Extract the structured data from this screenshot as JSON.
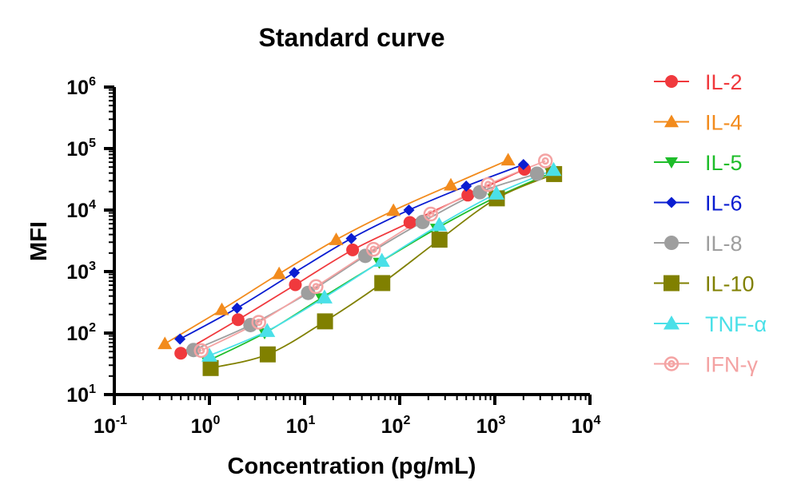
{
  "chart_data": {
    "type": "scatter",
    "title": "Standard curve",
    "xlabel": "Concentration (pg/mL)",
    "ylabel": "MFI",
    "x_scale": "log",
    "y_scale": "log",
    "xlim": [
      0.1,
      10000
    ],
    "ylim": [
      10,
      1000000
    ],
    "x_ticks": [
      {
        "base": "10",
        "exp": "-1"
      },
      {
        "base": "10",
        "exp": "0"
      },
      {
        "base": "10",
        "exp": "1"
      },
      {
        "base": "10",
        "exp": "2"
      },
      {
        "base": "10",
        "exp": "3"
      },
      {
        "base": "10",
        "exp": "4"
      }
    ],
    "y_ticks": [
      {
        "base": "10",
        "exp": "1"
      },
      {
        "base": "10",
        "exp": "2"
      },
      {
        "base": "10",
        "exp": "3"
      },
      {
        "base": "10",
        "exp": "4"
      },
      {
        "base": "10",
        "exp": "5"
      },
      {
        "base": "10",
        "exp": "6"
      }
    ],
    "grid": false,
    "legend_position": "right",
    "series": [
      {
        "name": "IL-2",
        "color": "#f0393d",
        "marker": "circle",
        "x": [
          0.5,
          2.0,
          8.0,
          32,
          128,
          520,
          2050
        ],
        "y": [
          47,
          165,
          610,
          2250,
          6300,
          17500,
          46000
        ]
      },
      {
        "name": "IL-4",
        "color": "#f28b1d",
        "marker": "triangle-up",
        "x": [
          0.34,
          1.35,
          5.4,
          21.5,
          86,
          345,
          1380
        ],
        "y": [
          67,
          240,
          920,
          3300,
          9800,
          25500,
          65000
        ]
      },
      {
        "name": "IL-5",
        "color": "#1ebd2a",
        "marker": "triangle-down",
        "x": [
          0.95,
          3.8,
          15,
          61,
          243,
          970,
          3900
        ],
        "y": [
          35,
          100,
          370,
          1400,
          5000,
          15500,
          40000
        ]
      },
      {
        "name": "IL-6",
        "color": "#0a1dd1",
        "marker": "diamond",
        "x": [
          0.49,
          1.95,
          7.8,
          31,
          125,
          500,
          2000
        ],
        "y": [
          80,
          255,
          960,
          3450,
          10000,
          24500,
          55000
        ]
      },
      {
        "name": "IL-8",
        "color": "#9e9e9e",
        "marker": "circle",
        "x": [
          0.68,
          2.7,
          10.9,
          43.5,
          174,
          696,
          2780
        ],
        "y": [
          53,
          135,
          450,
          1800,
          6400,
          19500,
          39000
        ]
      },
      {
        "name": "IL-10",
        "color": "#808000",
        "marker": "square",
        "x": [
          1.03,
          4.1,
          16.4,
          65.6,
          262,
          1050,
          4200
        ],
        "y": [
          27,
          45,
          155,
          650,
          3300,
          15500,
          38500
        ]
      },
      {
        "name": "TNF-α",
        "color": "#4ae0e8",
        "marker": "triangle-up",
        "x": [
          1.0,
          4.05,
          16.2,
          65,
          260,
          1040,
          4150
        ],
        "y": [
          43,
          108,
          380,
          1500,
          5700,
          18500,
          45000
        ]
      },
      {
        "name": "IFN-γ",
        "color": "#f4a3a3",
        "marker": "ring",
        "x": [
          0.82,
          3.3,
          13.2,
          53,
          212,
          850,
          3400
        ],
        "y": [
          52,
          150,
          570,
          2300,
          8600,
          26000,
          63000
        ]
      }
    ]
  }
}
